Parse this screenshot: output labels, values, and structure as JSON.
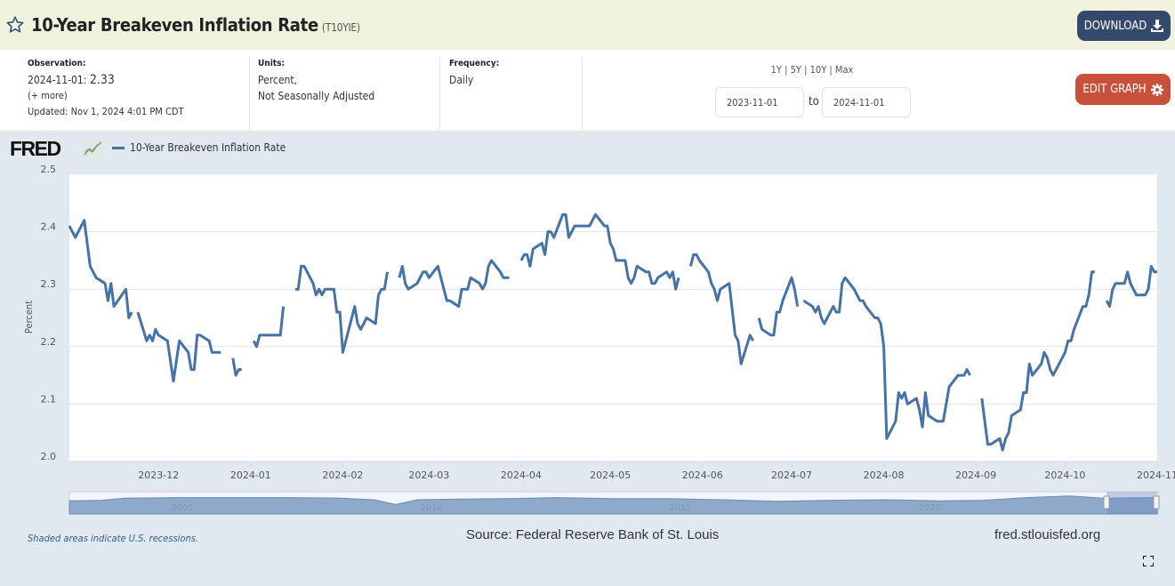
{
  "header": {
    "title": "10-Year Breakeven Inflation Rate",
    "series_id": "(T10YIE)",
    "download_label": "DOWNLOAD"
  },
  "info": {
    "observation_label": "Observation:",
    "observation_date": "2024-11-01:",
    "observation_value": "2.33",
    "more": "(+ more)",
    "updated": "Updated: Nov 1, 2024 4:01 PM CDT",
    "units_label": "Units:",
    "units_line1": "Percent,",
    "units_line2": "Not Seasonally Adjusted",
    "frequency_label": "Frequency:",
    "frequency_value": "Daily"
  },
  "range": {
    "links": [
      "1Y",
      "5Y",
      "10Y",
      "Max"
    ],
    "sep": "|",
    "start": "2023-11-01",
    "to": "to",
    "end": "2024-11-01",
    "edit_label": "EDIT GRAPH"
  },
  "brand": {
    "logo": "FRED"
  },
  "footer": {
    "recessions": "Shaded areas indicate U.S. recessions.",
    "source": "Source: Federal Reserve Bank of St. Louis",
    "url": "fred.stlouisfed.org"
  },
  "navigator": {
    "year_labels": [
      "2005",
      "2010",
      "2015",
      "2020"
    ]
  },
  "colors": {
    "line": "#4572a7",
    "header_bg": "#f0f2de",
    "download": "#34496b",
    "edit": "#c9503a",
    "chart_bg": "#e1e9f0"
  },
  "chart_data": {
    "type": "line",
    "title": "10-Year Breakeven Inflation Rate",
    "legend": [
      "10-Year Breakeven Inflation Rate"
    ],
    "legend_placement": "top-left",
    "ylabel": "Percent",
    "xlabel": "",
    "ylim": [
      2.0,
      2.5
    ],
    "yticks": [
      "2.0",
      "2.1",
      "2.2",
      "2.3",
      "2.4",
      "2.5"
    ],
    "x_unit": "days since 2023-11-01",
    "xlim": [
      0,
      366
    ],
    "xticks": [
      {
        "label": "2023-12",
        "day": 30
      },
      {
        "label": "2024-01",
        "day": 61
      },
      {
        "label": "2024-02",
        "day": 92
      },
      {
        "label": "2024-03",
        "day": 121
      },
      {
        "label": "2024-04",
        "day": 152
      },
      {
        "label": "2024-05",
        "day": 182
      },
      {
        "label": "2024-06",
        "day": 213
      },
      {
        "label": "2024-07",
        "day": 243
      },
      {
        "label": "2024-08",
        "day": 274
      },
      {
        "label": "2024-09",
        "day": 305
      },
      {
        "label": "2024-10",
        "day": 335
      },
      {
        "label": "2024-11",
        "day": 366
      }
    ],
    "grid": true,
    "segments": [
      [
        [
          0,
          2.41
        ],
        [
          2,
          2.39
        ],
        [
          5,
          2.42
        ],
        [
          7,
          2.34
        ],
        [
          9,
          2.32
        ],
        [
          12,
          2.31
        ],
        [
          13,
          2.28
        ],
        [
          14,
          2.31
        ],
        [
          15,
          2.27
        ],
        [
          19,
          2.3
        ],
        [
          20,
          2.25
        ],
        [
          21,
          2.26
        ]
      ],
      [
        [
          23,
          2.26
        ],
        [
          26,
          2.21
        ],
        [
          27,
          2.22
        ],
        [
          28,
          2.21
        ],
        [
          29,
          2.23
        ],
        [
          30,
          2.22
        ],
        [
          33,
          2.21
        ],
        [
          35,
          2.14
        ],
        [
          37,
          2.21
        ],
        [
          40,
          2.19
        ],
        [
          41,
          2.16
        ],
        [
          42,
          2.16
        ],
        [
          43,
          2.22
        ],
        [
          44,
          2.22
        ],
        [
          47,
          2.21
        ],
        [
          48,
          2.19
        ],
        [
          51,
          2.19
        ]
      ],
      [
        [
          55,
          2.18
        ],
        [
          56,
          2.15
        ],
        [
          57,
          2.16
        ],
        [
          58,
          2.16
        ]
      ],
      [
        [
          62,
          2.21
        ],
        [
          63,
          2.2
        ],
        [
          64,
          2.22
        ],
        [
          71,
          2.22
        ],
        [
          72,
          2.27
        ]
      ],
      [
        [
          76,
          2.3
        ],
        [
          77,
          2.3
        ],
        [
          78,
          2.34
        ],
        [
          79,
          2.34
        ],
        [
          82,
          2.31
        ],
        [
          83,
          2.29
        ],
        [
          84,
          2.3
        ],
        [
          85,
          2.29
        ],
        [
          86,
          2.3
        ],
        [
          89,
          2.3
        ],
        [
          90,
          2.26
        ],
        [
          91,
          2.26
        ],
        [
          92,
          2.19
        ],
        [
          96,
          2.27
        ],
        [
          97,
          2.24
        ],
        [
          98,
          2.23
        ],
        [
          100,
          2.25
        ],
        [
          103,
          2.24
        ],
        [
          104,
          2.29
        ],
        [
          105,
          2.3
        ],
        [
          106,
          2.3
        ],
        [
          107,
          2.33
        ]
      ],
      [
        [
          111,
          2.32
        ],
        [
          112,
          2.34
        ],
        [
          113,
          2.31
        ],
        [
          114,
          2.3
        ],
        [
          117,
          2.31
        ],
        [
          119,
          2.33
        ],
        [
          120,
          2.33
        ],
        [
          121,
          2.32
        ],
        [
          124,
          2.34
        ],
        [
          127,
          2.28
        ],
        [
          128,
          2.28
        ],
        [
          131,
          2.27
        ],
        [
          132,
          2.3
        ],
        [
          134,
          2.3
        ],
        [
          135,
          2.32
        ],
        [
          138,
          2.31
        ],
        [
          139,
          2.3
        ],
        [
          140,
          2.31
        ],
        [
          141,
          2.34
        ],
        [
          142,
          2.35
        ],
        [
          145,
          2.33
        ],
        [
          146,
          2.32
        ],
        [
          148,
          2.32
        ]
      ],
      [
        [
          152,
          2.35
        ],
        [
          153,
          2.36
        ],
        [
          154,
          2.36
        ],
        [
          155,
          2.34
        ],
        [
          156,
          2.37
        ],
        [
          159,
          2.38
        ],
        [
          160,
          2.36
        ],
        [
          161,
          2.4
        ],
        [
          162,
          2.4
        ],
        [
          163,
          2.39
        ],
        [
          166,
          2.43
        ],
        [
          167,
          2.43
        ],
        [
          168,
          2.39
        ],
        [
          170,
          2.41
        ],
        [
          175,
          2.41
        ],
        [
          177,
          2.43
        ],
        [
          180,
          2.41
        ],
        [
          181,
          2.41
        ],
        [
          182,
          2.38
        ],
        [
          183,
          2.37
        ],
        [
          184,
          2.35
        ],
        [
          187,
          2.35
        ],
        [
          188,
          2.32
        ],
        [
          189,
          2.31
        ],
        [
          190,
          2.32
        ],
        [
          191,
          2.34
        ],
        [
          194,
          2.33
        ],
        [
          195,
          2.33
        ],
        [
          196,
          2.31
        ],
        [
          197,
          2.31
        ],
        [
          198,
          2.32
        ],
        [
          201,
          2.33
        ],
        [
          202,
          2.32
        ],
        [
          203,
          2.33
        ],
        [
          204,
          2.3
        ],
        [
          205,
          2.32
        ]
      ],
      [
        [
          209,
          2.34
        ],
        [
          210,
          2.36
        ],
        [
          211,
          2.36
        ],
        [
          212,
          2.35
        ],
        [
          215,
          2.33
        ],
        [
          216,
          2.31
        ],
        [
          217,
          2.3
        ],
        [
          218,
          2.28
        ],
        [
          219,
          2.3
        ],
        [
          222,
          2.31
        ],
        [
          224,
          2.22
        ],
        [
          225,
          2.21
        ],
        [
          226,
          2.17
        ],
        [
          229,
          2.22
        ],
        [
          230,
          2.21
        ]
      ],
      [
        [
          232,
          2.25
        ],
        [
          233,
          2.23
        ],
        [
          236,
          2.22
        ],
        [
          237,
          2.22
        ],
        [
          238,
          2.26
        ],
        [
          239,
          2.26
        ],
        [
          240,
          2.28
        ],
        [
          243,
          2.32
        ],
        [
          244,
          2.3
        ],
        [
          245,
          2.27
        ]
      ],
      [
        [
          247,
          2.28
        ],
        [
          250,
          2.27
        ],
        [
          251,
          2.26
        ],
        [
          252,
          2.27
        ],
        [
          253,
          2.25
        ],
        [
          254,
          2.24
        ],
        [
          257,
          2.27
        ],
        [
          258,
          2.26
        ],
        [
          259,
          2.26
        ],
        [
          260,
          2.31
        ],
        [
          261,
          2.32
        ],
        [
          264,
          2.3
        ],
        [
          266,
          2.28
        ],
        [
          267,
          2.28
        ],
        [
          268,
          2.27
        ],
        [
          271,
          2.25
        ],
        [
          272,
          2.25
        ],
        [
          273,
          2.24
        ],
        [
          274,
          2.2
        ],
        [
          275,
          2.04
        ],
        [
          278,
          2.07
        ],
        [
          279,
          2.12
        ],
        [
          280,
          2.11
        ],
        [
          281,
          2.12
        ],
        [
          282,
          2.1
        ],
        [
          285,
          2.11
        ],
        [
          286,
          2.09
        ],
        [
          287,
          2.06
        ],
        [
          288,
          2.12
        ],
        [
          289,
          2.08
        ],
        [
          292,
          2.07
        ],
        [
          294,
          2.07
        ],
        [
          296,
          2.13
        ],
        [
          299,
          2.15
        ],
        [
          301,
          2.15
        ],
        [
          302,
          2.16
        ],
        [
          303,
          2.15
        ]
      ],
      [
        [
          307,
          2.11
        ],
        [
          309,
          2.03
        ],
        [
          310,
          2.03
        ],
        [
          313,
          2.04
        ],
        [
          314,
          2.02
        ],
        [
          315,
          2.04
        ],
        [
          316,
          2.05
        ],
        [
          317,
          2.08
        ],
        [
          320,
          2.09
        ],
        [
          321,
          2.12
        ],
        [
          322,
          2.12
        ],
        [
          323,
          2.17
        ],
        [
          324,
          2.15
        ],
        [
          327,
          2.17
        ],
        [
          328,
          2.19
        ],
        [
          329,
          2.18
        ],
        [
          330,
          2.16
        ],
        [
          331,
          2.15
        ],
        [
          335,
          2.19
        ],
        [
          336,
          2.21
        ],
        [
          337,
          2.21
        ],
        [
          338,
          2.23
        ],
        [
          341,
          2.27
        ],
        [
          342,
          2.27
        ],
        [
          343,
          2.29
        ],
        [
          344,
          2.33
        ],
        [
          345,
          2.33
        ]
      ],
      [
        [
          349,
          2.28
        ],
        [
          350,
          2.27
        ],
        [
          351,
          2.3
        ],
        [
          352,
          2.31
        ],
        [
          355,
          2.31
        ],
        [
          356,
          2.33
        ],
        [
          357,
          2.31
        ],
        [
          359,
          2.29
        ],
        [
          362,
          2.29
        ],
        [
          363,
          2.3
        ],
        [
          364,
          2.34
        ],
        [
          365,
          2.33
        ],
        [
          366,
          2.33
        ]
      ]
    ]
  }
}
